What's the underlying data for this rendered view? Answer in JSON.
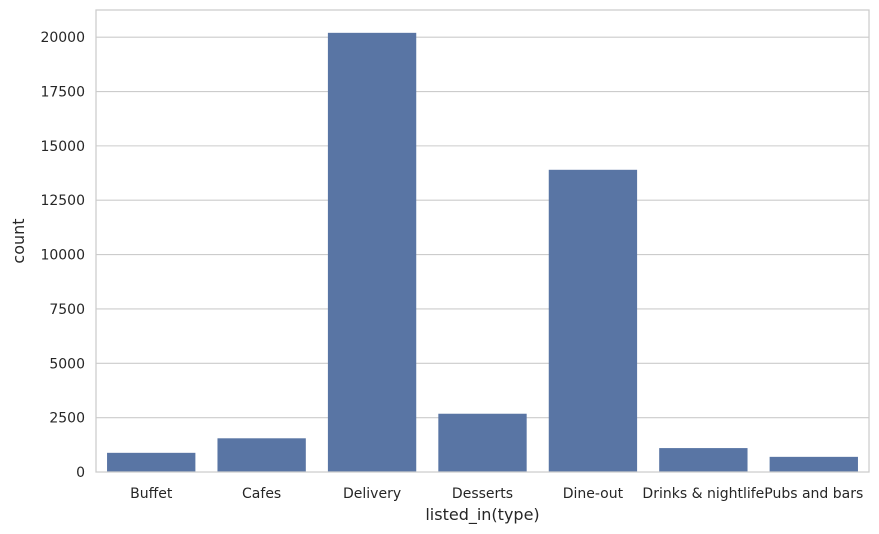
{
  "chart_data": {
    "type": "bar",
    "categories": [
      "Buffet",
      "Cafes",
      "Delivery",
      "Desserts",
      "Dine-out",
      "Drinks & nightlife",
      "Pubs and bars"
    ],
    "values": [
      882,
      1550,
      20200,
      2680,
      13900,
      1100,
      697
    ],
    "xlabel": "listed_in(type)",
    "ylabel": "count",
    "ylim": [
      0,
      21250
    ],
    "yticks": [
      0,
      2500,
      5000,
      7500,
      10000,
      12500,
      15000,
      17500,
      20000
    ],
    "grid": true,
    "bar_color": "#5975a4",
    "grid_color": "#cccccc"
  }
}
